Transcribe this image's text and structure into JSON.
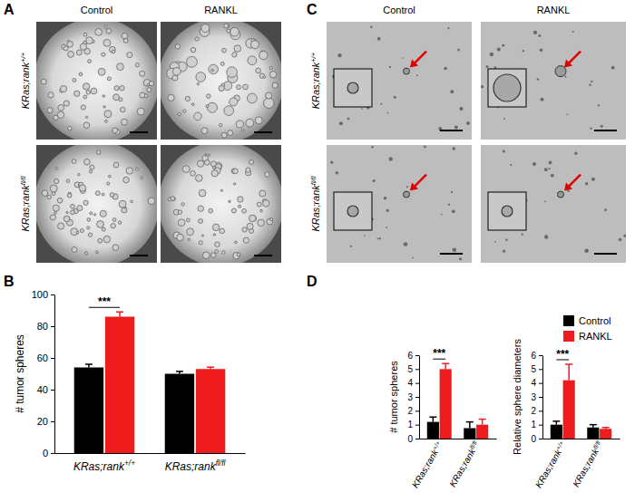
{
  "panels": [
    {
      "label": "A",
      "columns": [
        "Control",
        "RANKL"
      ],
      "rows": [
        "KRas;rank+/+",
        "KRas;rankfl/fl"
      ]
    },
    {
      "label": "C",
      "columns": [
        "Control",
        "RANKL"
      ],
      "rows": [
        "KRas;rank+/+",
        "KRas;rankfl/fl"
      ]
    }
  ],
  "chart_data": [
    {
      "panel": "B",
      "type": "bar",
      "categories": [
        "KRas;rank+/+",
        "KRas;rankfl/fl"
      ],
      "series": [
        {
          "name": "Control",
          "color": "#000000",
          "values": [
            54,
            50
          ],
          "errors": [
            2,
            1.5
          ]
        },
        {
          "name": "RANKL",
          "color": "#ee1c1c",
          "values": [
            86,
            53
          ],
          "errors": [
            3,
            1.2
          ]
        }
      ],
      "y_label": "# tumor spheres",
      "ylim": [
        0,
        100
      ],
      "yticks": [
        0,
        20,
        40,
        60,
        80,
        100
      ],
      "annotations": [
        {
          "text": "***",
          "category": "KRas;rank+/+"
        }
      ]
    },
    {
      "panel": "D",
      "type": "bar",
      "categories": [
        "KRas;rank+/+",
        "KRas;rankfl/fl"
      ],
      "series": [
        {
          "name": "Control",
          "color": "#000000",
          "values": [
            1.2,
            0.75
          ],
          "errors": [
            0.35,
            0.45
          ]
        },
        {
          "name": "RANKL",
          "color": "#ee1c1c",
          "values": [
            5.0,
            1.0
          ],
          "errors": [
            0.4,
            0.4
          ]
        }
      ],
      "y_label": "# tumor spheres",
      "ylim": [
        0,
        6
      ],
      "yticks": [
        0,
        1,
        2,
        3,
        4,
        5,
        6
      ],
      "annotations": [
        {
          "text": "***",
          "category": "KRas;rank+/+"
        }
      ]
    },
    {
      "type": "bar",
      "categories": [
        "KRas;rank+/+",
        "KRas;rankfl/fl"
      ],
      "series": [
        {
          "name": "Control",
          "color": "#000000",
          "values": [
            1.0,
            0.8
          ],
          "errors": [
            0.25,
            0.2
          ]
        },
        {
          "name": "RANKL",
          "color": "#ee1c1c",
          "values": [
            4.2,
            0.7
          ],
          "errors": [
            1.15,
            0.1
          ]
        }
      ],
      "y_label": "Relative sphere diameters",
      "ylim": [
        0,
        6
      ],
      "yticks": [
        0,
        1,
        2,
        3,
        4,
        5,
        6
      ],
      "legend": "upper right",
      "annotations": [
        {
          "text": "***",
          "category": "KRas;rank+/+"
        }
      ]
    }
  ]
}
